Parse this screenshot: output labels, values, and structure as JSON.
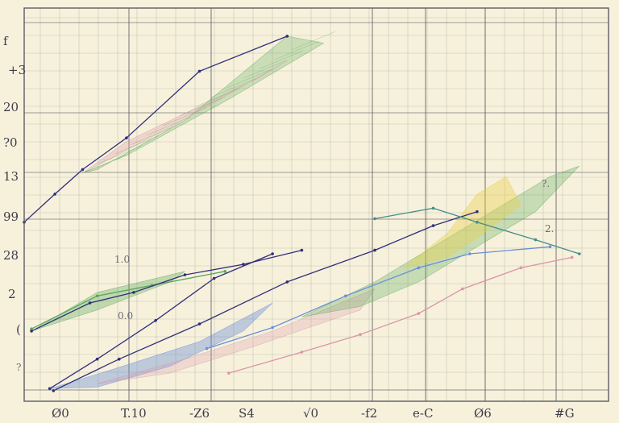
{
  "chart_data": {
    "type": "line",
    "title": "",
    "xlabel": "",
    "ylabel": "",
    "grid": true,
    "legend": "none",
    "x_tick_labels": [
      "Ø0",
      "T.10",
      "-Z6",
      "S4",
      "√0",
      "-f2",
      "e-C",
      "Ø6",
      "#G"
    ],
    "y_tick_labels": [
      "f",
      "+3",
      "20",
      "?0",
      "13",
      "99",
      "28",
      "2",
      "("
    ],
    "minor_labels": [
      "1.0",
      "0.0",
      "?.",
      "2.",
      "?"
    ],
    "colors": {
      "paper": "#f7f1dc",
      "grid": "#9aa19a",
      "grid_dark": "#5c5c66",
      "navy": "#2f2e7a",
      "green": "#58a85a",
      "pink": "#d995a8",
      "blue": "#6a8fd8",
      "yellow": "#e8cf4a",
      "teal": "#3f8f88",
      "red": "#b04050"
    },
    "series": [
      {
        "values": [
          [
            0.0,
            25.5
          ],
          [
            4.2,
            29.5
          ],
          [
            8.0,
            33.0
          ],
          [
            14.0,
            37.5
          ],
          [
            24.0,
            47.0
          ],
          [
            36.0,
            52.0
          ]
        ]
      },
      {
        "values": [
          [
            1.0,
            10.3
          ],
          [
            10.0,
            15.0
          ],
          [
            17.5,
            16.5
          ],
          [
            27.5,
            18.5
          ]
        ]
      },
      {
        "values": [
          [
            1.0,
            10.0
          ],
          [
            9.0,
            14.0
          ],
          [
            15.0,
            15.5
          ],
          [
            22.0,
            18.0
          ],
          [
            30.0,
            19.5
          ],
          [
            38.0,
            21.5
          ]
        ]
      },
      {
        "values": [
          [
            3.5,
            1.8
          ],
          [
            10.0,
            6.0
          ],
          [
            18.0,
            11.5
          ],
          [
            26.0,
            17.5
          ],
          [
            34.0,
            21.0
          ]
        ]
      },
      {
        "values": [
          [
            4.0,
            1.5
          ],
          [
            13.0,
            6.0
          ],
          [
            24.0,
            11.0
          ],
          [
            36.0,
            17.0
          ],
          [
            48.0,
            21.5
          ],
          [
            56.0,
            25.0
          ],
          [
            62.0,
            27.0
          ]
        ]
      },
      {
        "values": [
          [
            25.0,
            7.5
          ],
          [
            34.0,
            10.5
          ],
          [
            44.0,
            15.0
          ],
          [
            54.0,
            19.0
          ],
          [
            61.0,
            21.0
          ],
          [
            72.0,
            22.0
          ]
        ]
      },
      {
        "values": [
          [
            28.0,
            4.0
          ],
          [
            38.0,
            7.0
          ],
          [
            46.0,
            9.5
          ],
          [
            54.0,
            12.5
          ],
          [
            60.0,
            16.0
          ],
          [
            68.0,
            19.0
          ],
          [
            75.0,
            20.5
          ]
        ]
      },
      {
        "values": [
          [
            48.0,
            26.0
          ],
          [
            56.0,
            27.5
          ],
          [
            62.0,
            25.5
          ],
          [
            70.0,
            23.0
          ],
          [
            76.0,
            21.0
          ]
        ]
      }
    ],
    "bands": [
      {
        "color": "green",
        "opacity": 0.28,
        "points": [
          [
            10.0,
            33.0
          ],
          [
            22.0,
            40.0
          ],
          [
            36.0,
            52.0
          ],
          [
            41.0,
            51.0
          ],
          [
            28.0,
            43.0
          ],
          [
            14.0,
            35.0
          ],
          [
            8.0,
            32.5
          ]
        ]
      },
      {
        "color": "pink",
        "opacity": 0.3,
        "points": [
          [
            8.0,
            32.5
          ],
          [
            20.0,
            39.0
          ],
          [
            36.0,
            48.5
          ],
          [
            32.0,
            46.0
          ],
          [
            22.0,
            41.0
          ],
          [
            14.0,
            37.0
          ]
        ]
      },
      {
        "color": "green",
        "opacity": 0.35,
        "points": [
          [
            1.0,
            10.0
          ],
          [
            10.0,
            15.5
          ],
          [
            22.0,
            18.5
          ],
          [
            20.0,
            17.0
          ],
          [
            10.0,
            13.0
          ]
        ]
      },
      {
        "color": "blue",
        "opacity": 0.4,
        "points": [
          [
            3.5,
            1.8
          ],
          [
            12.0,
            4.5
          ],
          [
            24.0,
            8.5
          ],
          [
            34.0,
            14.0
          ],
          [
            30.0,
            10.0
          ],
          [
            20.0,
            5.0
          ],
          [
            10.0,
            2.0
          ]
        ]
      },
      {
        "color": "pink",
        "opacity": 0.25,
        "points": [
          [
            10.0,
            2.5
          ],
          [
            22.0,
            6.0
          ],
          [
            34.0,
            10.0
          ],
          [
            48.0,
            16.0
          ],
          [
            46.0,
            13.0
          ],
          [
            32.0,
            8.0
          ],
          [
            20.0,
            4.0
          ]
        ]
      },
      {
        "color": "green",
        "opacity": 0.3,
        "points": [
          [
            38.0,
            12.0
          ],
          [
            48.0,
            17.0
          ],
          [
            56.0,
            22.0
          ],
          [
            64.0,
            27.0
          ],
          [
            72.0,
            32.0
          ],
          [
            76.0,
            33.5
          ],
          [
            70.0,
            27.0
          ],
          [
            62.0,
            22.0
          ],
          [
            54.0,
            17.0
          ],
          [
            46.0,
            13.5
          ]
        ]
      },
      {
        "color": "yellow",
        "opacity": 0.4,
        "points": [
          [
            52.0,
            19.0
          ],
          [
            58.0,
            24.0
          ],
          [
            62.0,
            29.5
          ],
          [
            66.0,
            32.0
          ],
          [
            68.0,
            28.0
          ],
          [
            63.0,
            24.0
          ],
          [
            58.0,
            20.5
          ]
        ]
      }
    ],
    "x_range": [
      0,
      80
    ],
    "y_range": [
      0,
      56
    ]
  }
}
